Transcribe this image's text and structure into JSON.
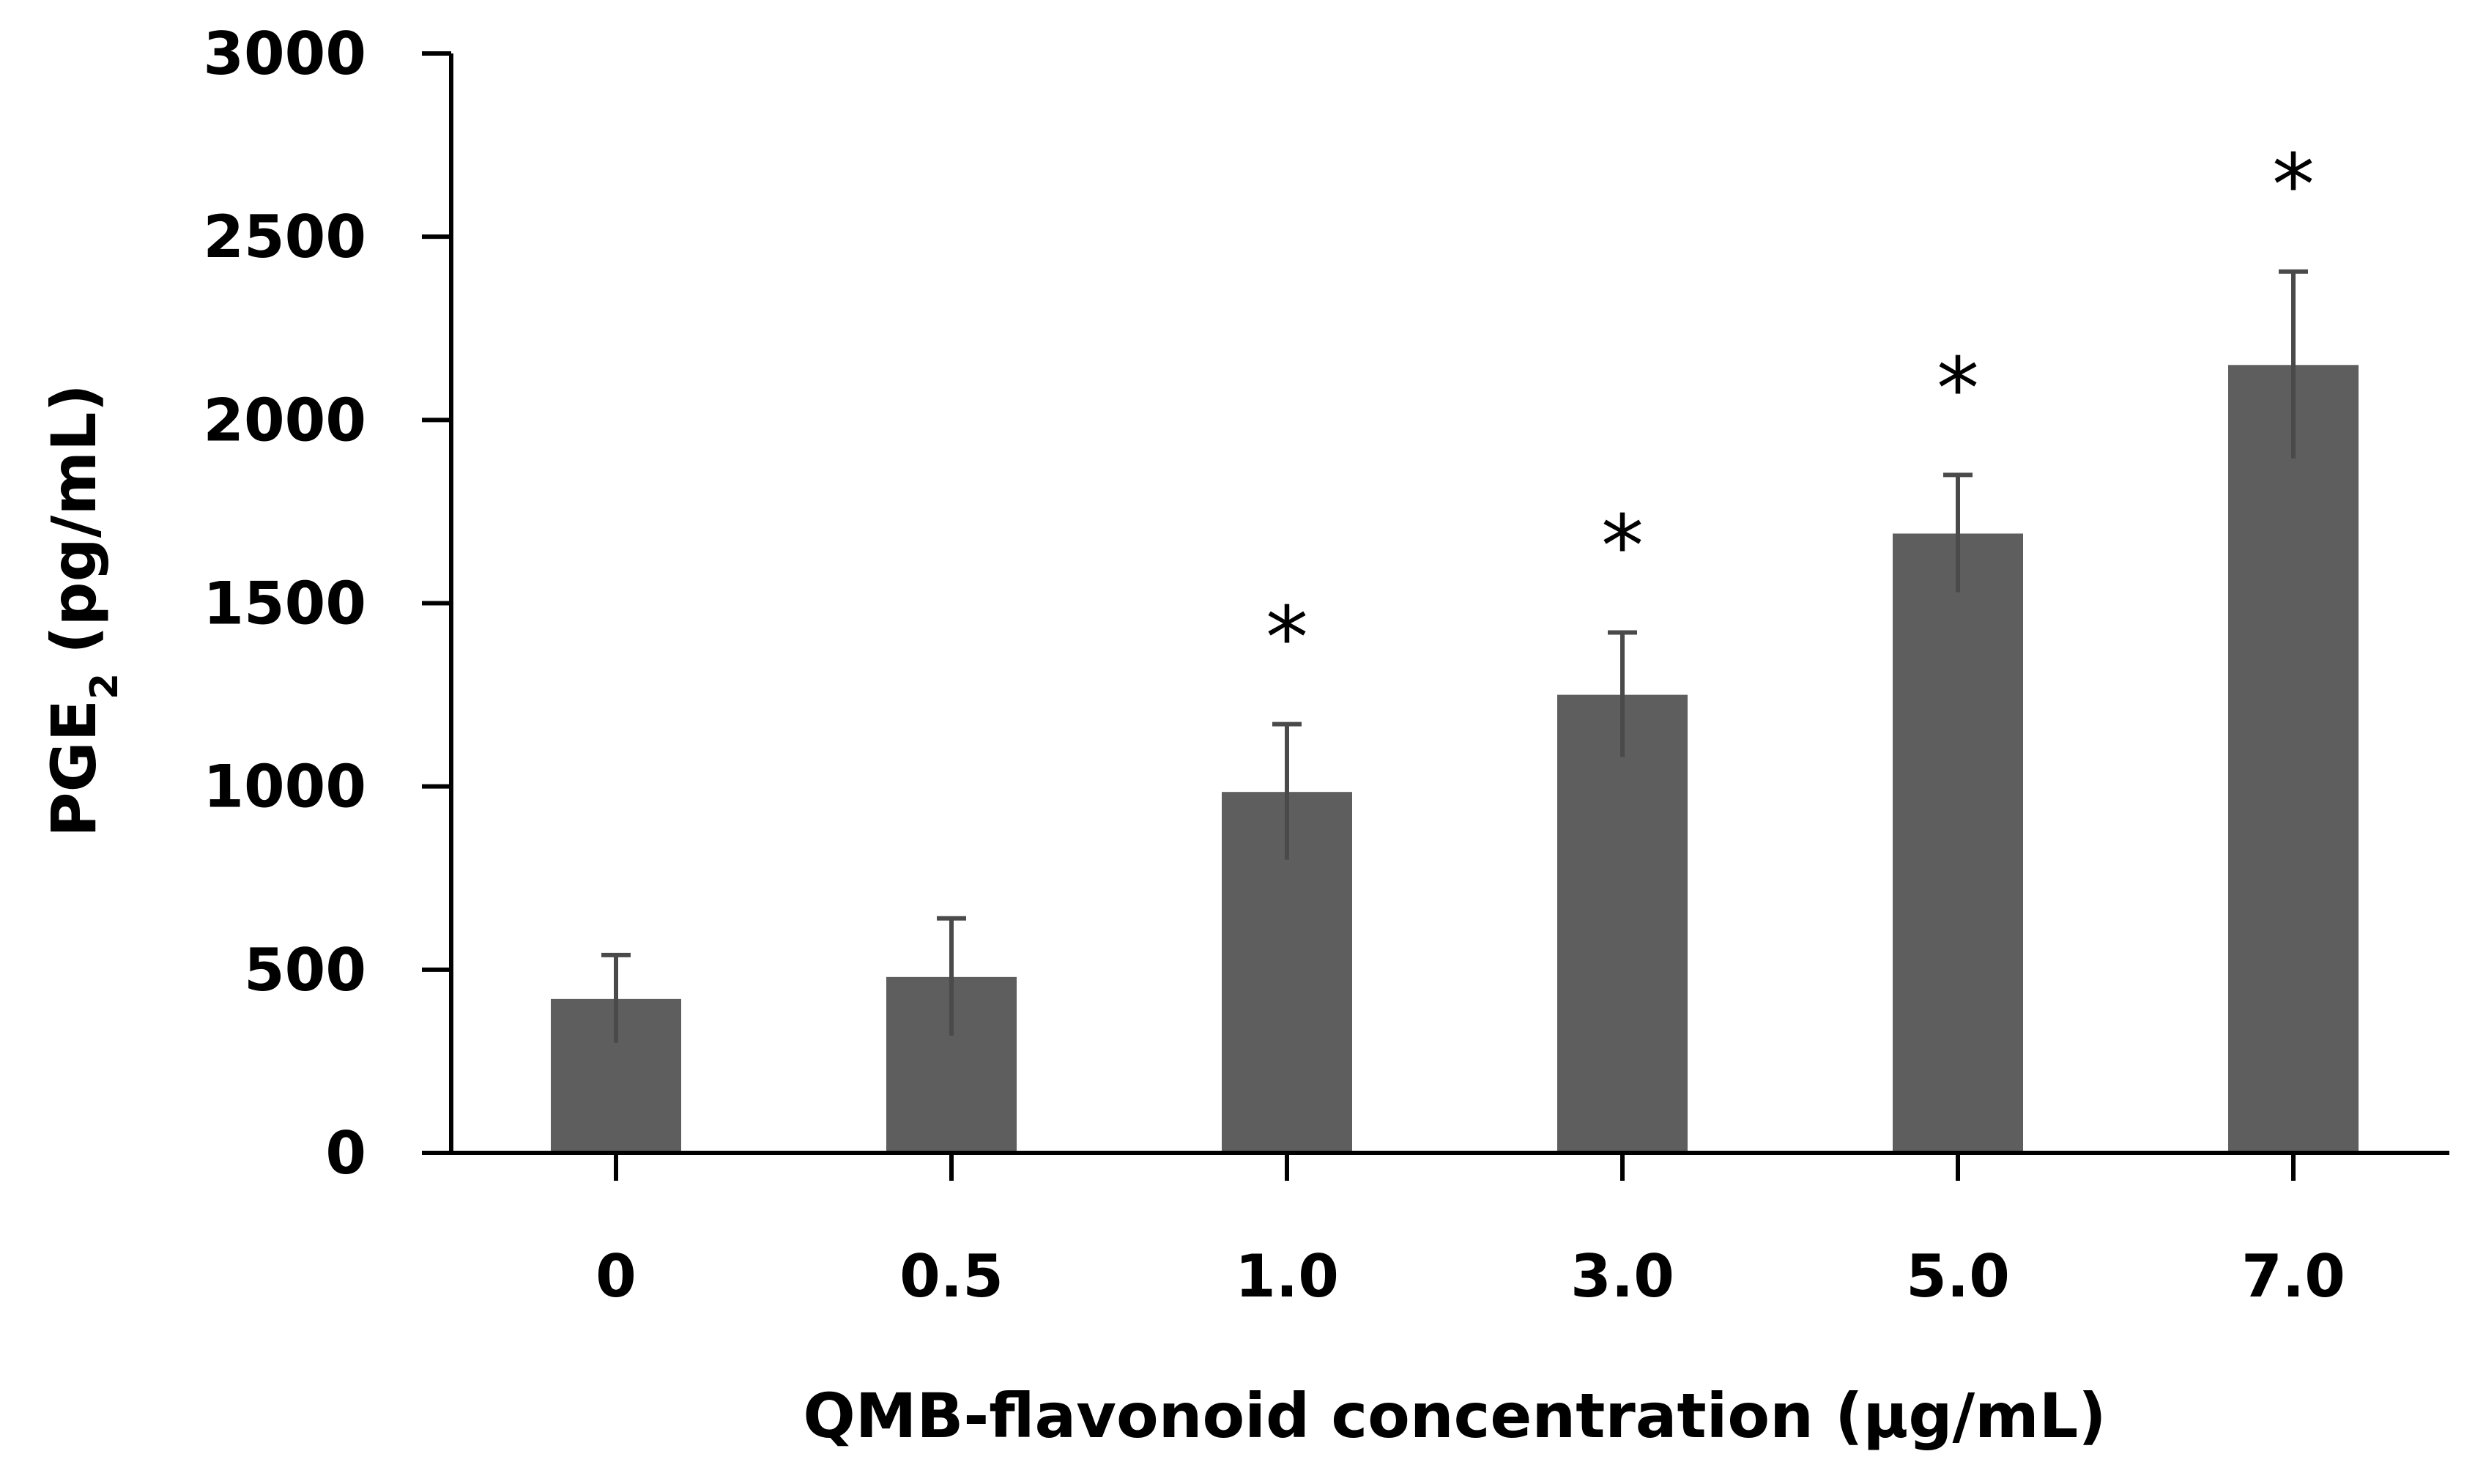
{
  "chart_data": {
    "type": "bar",
    "title": "",
    "xlabel": "QMB-flavonoid concentration (µg/mL)",
    "ylabel": {
      "main": "PGE",
      "subscript": "2",
      "unit": "(pg/mL)"
    },
    "categories": [
      "0",
      "0.5",
      "1.0",
      "3.0",
      "5.0",
      "7.0"
    ],
    "values": [
      420,
      480,
      985,
      1250,
      1690,
      2150
    ],
    "error": [
      120,
      160,
      185,
      170,
      160,
      255
    ],
    "significance": [
      "",
      "",
      "*",
      "*",
      "*",
      "*"
    ],
    "ylim": [
      0,
      3000
    ],
    "yticks": [
      0,
      500,
      1000,
      1500,
      2000,
      2500,
      3000
    ],
    "grid": false,
    "legend": "none",
    "colors": {
      "bar": "#5e5e5e",
      "error_bar": "#4a4a4a",
      "axis": "#000000",
      "text": "#000000"
    }
  }
}
